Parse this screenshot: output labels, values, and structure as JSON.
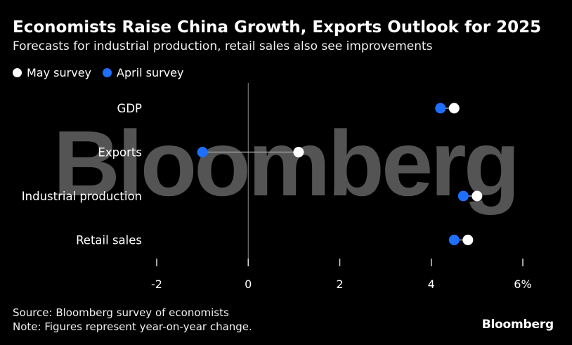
{
  "header": {
    "title": "Economists Raise China Growth, Exports Outlook for 2025",
    "subtitle": "Forecasts for industrial production, retail sales also see improvements"
  },
  "legend": [
    {
      "label": "May survey",
      "color": "#ffffff"
    },
    {
      "label": "April survey",
      "color": "#1f6fff"
    }
  ],
  "watermark": "Bloomberg",
  "chart_data": {
    "type": "scatter",
    "categories": [
      "GDP",
      "Exports",
      "Industrial production",
      "Retail sales"
    ],
    "series": [
      {
        "name": "May survey",
        "color": "#ffffff",
        "values": [
          4.5,
          1.1,
          5.0,
          4.8
        ]
      },
      {
        "name": "April survey",
        "color": "#1f6fff",
        "values": [
          4.2,
          -1.0,
          4.7,
          4.5
        ]
      }
    ],
    "x_ticks": [
      -2,
      0,
      2,
      4,
      6
    ],
    "x_tick_labels": [
      "-2",
      "0",
      "2",
      "4",
      "6%"
    ],
    "xlim": [
      -2,
      6
    ],
    "grid": false,
    "legend_position": "top-left"
  },
  "footer": {
    "source": "Source: Bloomberg survey of economists",
    "note": "Note: Figures represent year-on-year change.",
    "brand": "Bloomberg"
  }
}
